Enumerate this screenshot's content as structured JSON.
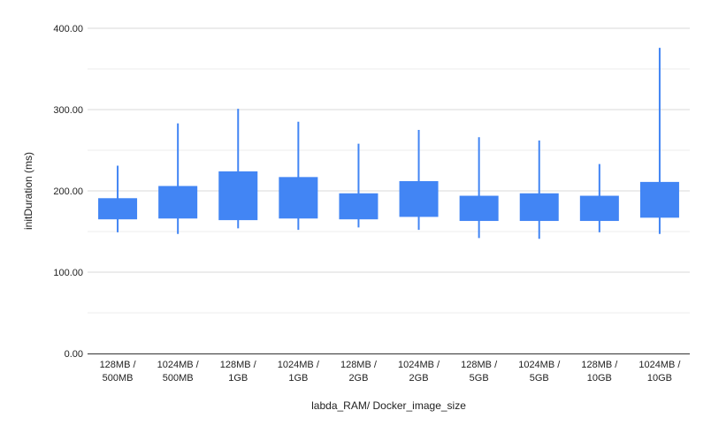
{
  "chart_data": {
    "type": "candlestick",
    "xlabel": "labda_RAM/ Docker_image_size",
    "ylabel": "initDuration (ms)",
    "ylim": [
      0,
      400
    ],
    "y_ticks": [
      "0.00",
      "100.00",
      "200.00",
      "300.00",
      "400.00"
    ],
    "y_tick_values": [
      0,
      100,
      200,
      300,
      400
    ],
    "grid": true,
    "legend": "none",
    "categories": [
      [
        "128MB /",
        "500MB"
      ],
      [
        "1024MB /",
        "500MB"
      ],
      [
        "128MB /",
        "1GB"
      ],
      [
        "1024MB /",
        "1GB"
      ],
      [
        "128MB /",
        "2GB"
      ],
      [
        "1024MB /",
        "2GB"
      ],
      [
        "128MB /",
        "5GB"
      ],
      [
        "1024MB /",
        "5GB"
      ],
      [
        "128MB /",
        "10GB"
      ],
      [
        "1024MB /",
        "10GB"
      ]
    ],
    "series": [
      {
        "low": [
          149,
          147,
          154,
          152,
          155,
          152,
          142,
          141,
          149,
          147
        ],
        "open": [
          165,
          166,
          164,
          166,
          165,
          168,
          163,
          163,
          163,
          167
        ],
        "close": [
          191,
          206,
          224,
          217,
          197,
          212,
          194,
          197,
          194,
          211
        ],
        "high": [
          231,
          283,
          301,
          285,
          258,
          275,
          266,
          262,
          233,
          376
        ]
      }
    ],
    "colors": {
      "box": "#4285f4",
      "grid": "#dddddd",
      "axis": "#333333"
    }
  }
}
